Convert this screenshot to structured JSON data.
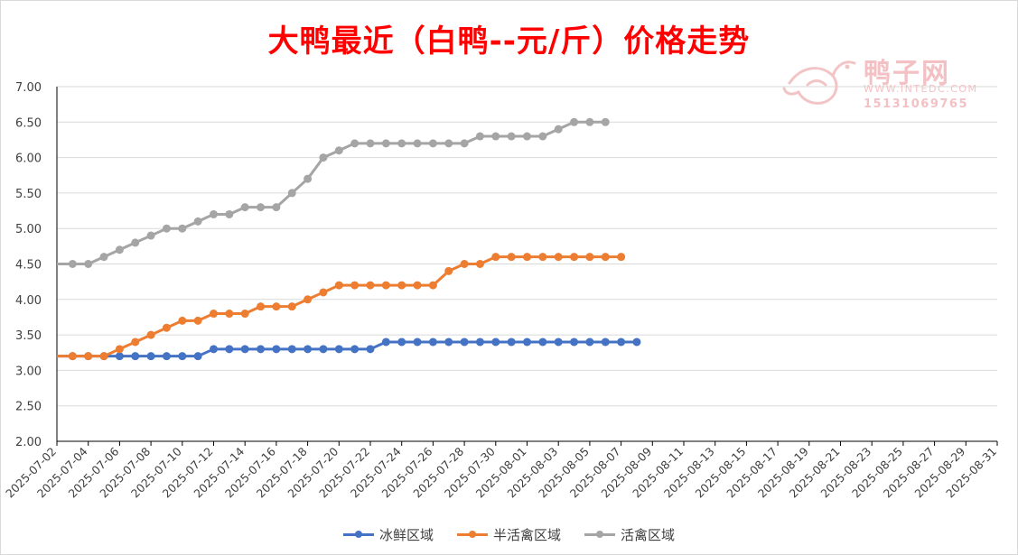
{
  "chart_data": {
    "type": "line",
    "title": "大鸭最近（白鸭--元/斤）价格走势",
    "ylim": [
      2.0,
      7.0
    ],
    "ytick_labels": [
      "2.00",
      "2.50",
      "3.00",
      "3.50",
      "4.00",
      "4.50",
      "5.00",
      "5.50",
      "6.00",
      "6.50",
      "7.00"
    ],
    "x_start": "2025-07-02",
    "x_end": "2025-08-31",
    "xtick_labels": [
      "2025-07-02",
      "2025-07-04",
      "2025-07-06",
      "2025-07-08",
      "2025-07-10",
      "2025-07-12",
      "2025-07-14",
      "2025-07-16",
      "2025-07-18",
      "2025-07-20",
      "2025-07-22",
      "2025-07-24",
      "2025-07-26",
      "2025-07-28",
      "2025-07-30",
      "2025-08-01",
      "2025-08-03",
      "2025-08-05",
      "2025-08-07",
      "2025-08-09",
      "2025-08-11",
      "2025-08-13",
      "2025-08-15",
      "2025-08-17",
      "2025-08-19",
      "2025-08-21",
      "2025-08-23",
      "2025-08-25",
      "2025-08-27",
      "2025-08-29",
      "2025-08-31"
    ],
    "grid": true,
    "legend_position": "bottom",
    "series": [
      {
        "name": "冰鲜区域",
        "color": "#4472c4",
        "start": "2025-07-01",
        "values": [
          3.2,
          3.2,
          3.2,
          3.2,
          3.2,
          3.2,
          3.2,
          3.2,
          3.2,
          3.2,
          3.2,
          3.3,
          3.3,
          3.3,
          3.3,
          3.3,
          3.3,
          3.3,
          3.3,
          3.3,
          3.3,
          3.3,
          3.4,
          3.4,
          3.4,
          3.4,
          3.4,
          3.4,
          3.4,
          3.4,
          3.4,
          3.4,
          3.4,
          3.4,
          3.4,
          3.4,
          3.4,
          3.4,
          3.4
        ]
      },
      {
        "name": "半活禽区域",
        "color": "#ed7d31",
        "start": "2025-07-01",
        "values": [
          3.2,
          3.2,
          3.2,
          3.2,
          3.2,
          3.3,
          3.4,
          3.5,
          3.6,
          3.7,
          3.7,
          3.8,
          3.8,
          3.8,
          3.9,
          3.9,
          3.9,
          4.0,
          4.1,
          4.2,
          4.2,
          4.2,
          4.2,
          4.2,
          4.2,
          4.2,
          4.4,
          4.5,
          4.5,
          4.6,
          4.6,
          4.6,
          4.6,
          4.6,
          4.6,
          4.6,
          4.6,
          4.6
        ]
      },
      {
        "name": "活禽区域",
        "color": "#a5a5a5",
        "start": "2025-07-01",
        "values": [
          4.5,
          4.5,
          4.5,
          4.5,
          4.6,
          4.7,
          4.8,
          4.9,
          5.0,
          5.0,
          5.1,
          5.2,
          5.2,
          5.3,
          5.3,
          5.3,
          5.5,
          5.7,
          6.0,
          6.1,
          6.2,
          6.2,
          6.2,
          6.2,
          6.2,
          6.2,
          6.2,
          6.2,
          6.3,
          6.3,
          6.3,
          6.3,
          6.3,
          6.4,
          6.5,
          6.5,
          6.5
        ]
      }
    ]
  },
  "watermark": {
    "name": "鸭子网",
    "site": "WWW.INTEDC.COM",
    "phone": "15131069765"
  }
}
